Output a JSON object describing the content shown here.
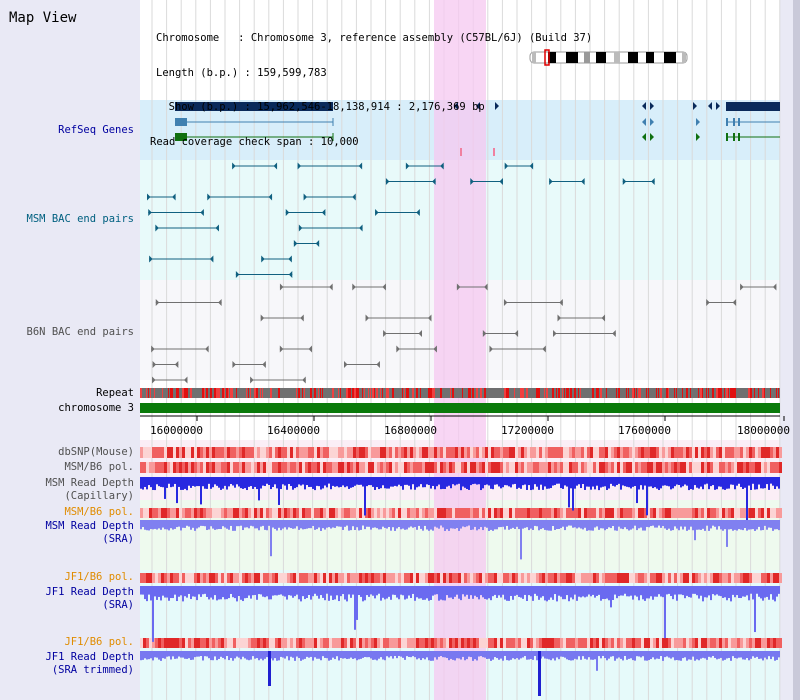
{
  "title": "Map View",
  "header": {
    "line1": "Chromosome   : Chromosome 3, reference assembly (C57BL/6J) (Build 37)",
    "line2": "Length (b.p.) : 159,599,783",
    "line3": "  Show (b.p.) : 15,962,546-18,138,914 : 2,176,369 bp",
    "line4": "Read coverage check span : 10,000"
  },
  "tracks": {
    "refseq": "RefSeq Genes",
    "msm_bac": "MSM BAC end pairs",
    "b6n_bac": "B6N BAC end pairs",
    "repeat": "Repeat",
    "chromosome": "chromosome 3",
    "dbsnp": "dbSNP(Mouse)",
    "msm_b6_pol_1": "MSM/B6 pol.",
    "msm_read_cap_1": "MSM Read Depth",
    "msm_read_cap_2": "(Capillary)",
    "msm_b6_pol_2": "MSM/B6 pol.",
    "msm_read_sra_1": "MSM Read Depth",
    "msm_read_sra_2": "(SRA)",
    "jf1_b6_pol_1": "JF1/B6 pol.",
    "jf1_read_sra_1": "JF1 Read Depth",
    "jf1_read_sra_2": "(SRA)",
    "jf1_b6_pol_2": "JF1/B6 pol.",
    "jf1_read_trim_1": "JF1 Read Depth",
    "jf1_read_trim_2": "(SRA trimmed)"
  },
  "axis_ticks": [
    "16000000",
    "16400000",
    "16800000",
    "17200000",
    "17600000",
    "18000000"
  ],
  "colors": {
    "navy": "#0a2a5a",
    "teal": "#006080",
    "highlight": "#f5c8f0",
    "chromosome_green": "#0a7a0a",
    "depth_blue": "#2020e0",
    "depth_light": "#7070f0",
    "pol_red": "#e83030"
  }
}
